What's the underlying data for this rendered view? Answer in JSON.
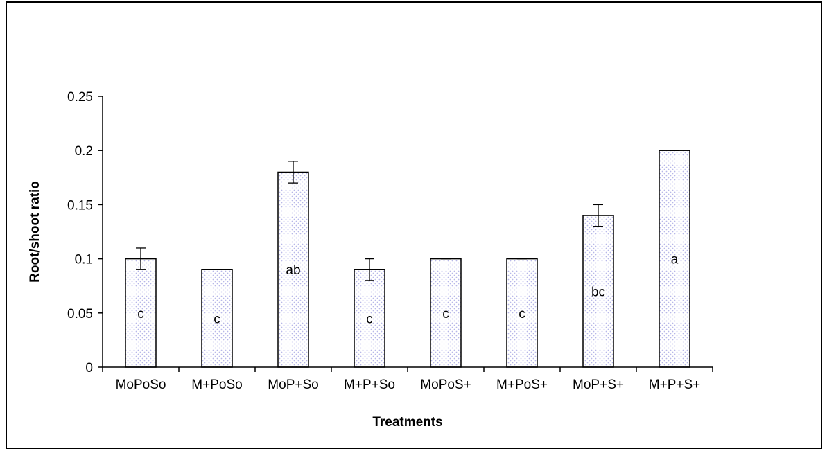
{
  "chart_data": {
    "type": "bar",
    "title": "",
    "xlabel": "Treatments",
    "ylabel": "Root/shoot ratio",
    "categories": [
      "MoPoSo",
      "M+PoSo",
      "MoP+So",
      "M+P+So",
      "MoPoS+",
      "M+PoS+",
      "MoP+S+",
      "M+P+S+"
    ],
    "values": [
      0.1,
      0.09,
      0.18,
      0.09,
      0.1,
      0.1,
      0.14,
      0.2
    ],
    "errors": [
      0.01,
      0,
      0.01,
      0.01,
      0,
      0,
      0.01,
      0
    ],
    "significance_labels": [
      "c",
      "c",
      "ab",
      "c",
      "c",
      "c",
      "bc",
      "a"
    ],
    "ylim": [
      0,
      0.25
    ],
    "yticks": [
      "0",
      "0.05",
      "0.1",
      "0.15",
      "0.2",
      "0.25"
    ],
    "grid": false,
    "legend": "none",
    "bar_fill": "#ffffff",
    "bar_dot_color": "#b7b7e8"
  }
}
